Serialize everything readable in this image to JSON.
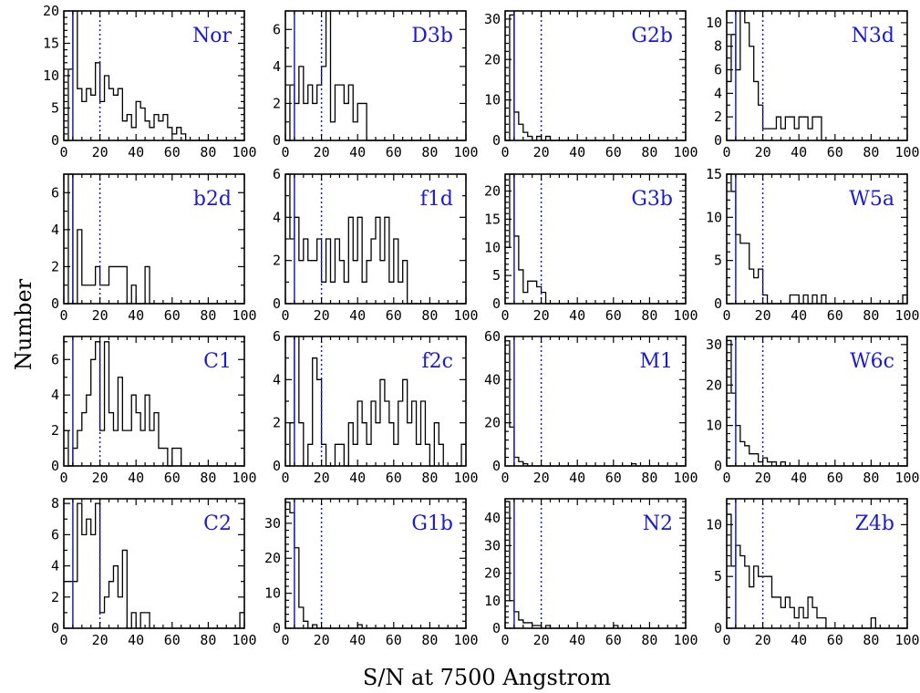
{
  "figure": {
    "ylabel": "Number",
    "xlabel": "S/N at 7500 Angstrom"
  },
  "colors": {
    "marker_lines": "#1a1ad6",
    "panel_label": "#1a1ad6",
    "histogram": "#000000"
  },
  "chart_data": [
    {
      "type": "bar",
      "panel": "Nor",
      "bin_width": 2.5,
      "xlim": [
        0,
        100
      ],
      "ylim": [
        0,
        20
      ],
      "yticks": [
        0,
        5,
        10,
        15,
        20
      ],
      "xticks": [
        0,
        20,
        40,
        60,
        80,
        100
      ],
      "solid_line_x": 5,
      "dotted_line_x": 20,
      "values": [
        0,
        11,
        20,
        8,
        6,
        8,
        7,
        12,
        6,
        10,
        8,
        7,
        8,
        3,
        4,
        2,
        6,
        5,
        3,
        2,
        4,
        3,
        4,
        2,
        1,
        2,
        1,
        0,
        0,
        0,
        0,
        0,
        0,
        0,
        0,
        0,
        0,
        0,
        0,
        0
      ]
    },
    {
      "type": "bar",
      "panel": "D3b",
      "bin_width": 2.5,
      "xlim": [
        0,
        100
      ],
      "ylim": [
        0,
        7
      ],
      "yticks": [
        0,
        2,
        4,
        6
      ],
      "xticks": [
        0,
        20,
        40,
        60,
        80,
        100
      ],
      "solid_line_x": 5,
      "dotted_line_x": 20,
      "values": [
        0,
        3,
        2,
        4,
        2,
        3,
        2,
        3,
        4,
        7,
        1,
        3,
        3,
        2,
        3,
        1,
        2,
        2,
        0,
        0,
        0,
        0,
        0,
        0,
        0,
        0,
        0,
        0,
        0,
        0,
        0,
        0,
        0,
        0,
        0,
        0,
        0,
        0,
        0,
        0
      ]
    },
    {
      "type": "bar",
      "panel": "G2b",
      "bin_width": 2.5,
      "xlim": [
        0,
        100
      ],
      "ylim": [
        0,
        32
      ],
      "yticks": [
        0,
        10,
        20,
        30
      ],
      "xticks": [
        0,
        20,
        40,
        60,
        80,
        100
      ],
      "solid_line_x": 5,
      "dotted_line_x": 20,
      "values": [
        0,
        31,
        7,
        4,
        2,
        1,
        0,
        1,
        0,
        1,
        0,
        0,
        0,
        0,
        0,
        0,
        0,
        0,
        0,
        0,
        0,
        0,
        0,
        0,
        0,
        0,
        0,
        0,
        0,
        0,
        0,
        0,
        0,
        0,
        0,
        0,
        0,
        0,
        0,
        0
      ]
    },
    {
      "type": "bar",
      "panel": "N3d",
      "bin_width": 2.5,
      "xlim": [
        0,
        100
      ],
      "ylim": [
        0,
        11
      ],
      "yticks": [
        0,
        2,
        4,
        6,
        8,
        10
      ],
      "xticks": [
        0,
        20,
        40,
        60,
        80,
        100
      ],
      "solid_line_x": 5,
      "dotted_line_x": 20,
      "values": [
        5,
        9,
        6,
        11,
        10,
        8,
        5,
        3,
        1,
        1,
        1,
        2,
        1,
        2,
        2,
        1,
        2,
        2,
        1,
        2,
        2,
        0,
        0,
        0,
        0,
        0,
        0,
        0,
        0,
        0,
        0,
        0,
        0,
        0,
        0,
        0,
        0,
        0,
        0,
        0
      ]
    },
    {
      "type": "bar",
      "panel": "b2d",
      "bin_width": 2.5,
      "xlim": [
        0,
        100
      ],
      "ylim": [
        0,
        7
      ],
      "yticks": [
        0,
        2,
        4,
        6
      ],
      "xticks": [
        0,
        20,
        40,
        60,
        80,
        100
      ],
      "solid_line_x": 5,
      "dotted_line_x": 20,
      "values": [
        0,
        7,
        0,
        4,
        1,
        1,
        1,
        2,
        1,
        1,
        2,
        2,
        2,
        2,
        0,
        1,
        0,
        0,
        2,
        0,
        0,
        0,
        0,
        0,
        0,
        0,
        0,
        0,
        0,
        0,
        0,
        0,
        0,
        0,
        0,
        0,
        0,
        0,
        0,
        0
      ]
    },
    {
      "type": "bar",
      "panel": "f1d",
      "bin_width": 2.5,
      "xlim": [
        0,
        100
      ],
      "ylim": [
        0,
        6
      ],
      "yticks": [
        0,
        2,
        4,
        6
      ],
      "xticks": [
        0,
        20,
        40,
        60,
        80,
        100
      ],
      "solid_line_x": 5,
      "dotted_line_x": 20,
      "values": [
        6,
        3,
        4,
        2,
        3,
        2,
        2,
        3,
        1,
        3,
        1,
        3,
        2,
        1,
        4,
        2,
        4,
        1,
        2,
        3,
        4,
        2,
        4,
        1,
        3,
        1,
        2,
        0,
        0,
        0,
        0,
        0,
        0,
        0,
        0,
        0,
        0,
        0,
        0,
        0
      ]
    },
    {
      "type": "bar",
      "panel": "G3b",
      "bin_width": 2.5,
      "xlim": [
        0,
        100
      ],
      "ylim": [
        0,
        23
      ],
      "yticks": [
        0,
        5,
        10,
        15,
        20
      ],
      "xticks": [
        0,
        20,
        40,
        60,
        80,
        100
      ],
      "solid_line_x": 5,
      "dotted_line_x": 20,
      "values": [
        10,
        23,
        12,
        6,
        2,
        4,
        4,
        3,
        2,
        0,
        0,
        0,
        0,
        0,
        0,
        0,
        0,
        0,
        0,
        0,
        0,
        0,
        0,
        0,
        0,
        0,
        0,
        0,
        0,
        0,
        0,
        0,
        0,
        0,
        0,
        0,
        0,
        0,
        0,
        0
      ]
    },
    {
      "type": "bar",
      "panel": "W5a",
      "bin_width": 2.5,
      "xlim": [
        0,
        100
      ],
      "ylim": [
        0,
        15
      ],
      "yticks": [
        0,
        5,
        10,
        15
      ],
      "xticks": [
        0,
        20,
        40,
        60,
        80,
        100
      ],
      "solid_line_x": 5,
      "dotted_line_x": 20,
      "values": [
        15,
        13,
        8,
        7,
        7,
        4,
        3,
        4,
        1,
        0,
        0,
        0,
        0,
        0,
        1,
        1,
        0,
        1,
        0,
        1,
        0,
        1,
        0,
        0,
        0,
        0,
        0,
        0,
        0,
        0,
        0,
        0,
        0,
        0,
        0,
        0,
        0,
        0,
        0,
        1
      ]
    },
    {
      "type": "bar",
      "panel": "C1",
      "bin_width": 2.5,
      "xlim": [
        0,
        100
      ],
      "ylim": [
        0,
        7.3
      ],
      "yticks": [
        0,
        2,
        4,
        6
      ],
      "xticks": [
        0,
        20,
        40,
        60,
        80,
        100
      ],
      "solid_line_x": 5,
      "dotted_line_x": 20,
      "values": [
        2,
        0,
        1,
        2,
        3,
        4,
        6,
        7,
        2,
        7,
        3,
        2,
        5,
        2,
        2,
        4,
        3,
        2,
        4,
        2,
        3,
        1,
        1,
        0,
        1,
        1,
        0,
        0,
        0,
        0,
        0,
        0,
        0,
        0,
        0,
        0,
        0,
        0,
        0,
        0
      ]
    },
    {
      "type": "bar",
      "panel": "f2c",
      "bin_width": 2.5,
      "xlim": [
        0,
        100
      ],
      "ylim": [
        0,
        6
      ],
      "yticks": [
        0,
        2,
        4,
        6
      ],
      "xticks": [
        0,
        20,
        40,
        60,
        80,
        100
      ],
      "solid_line_x": 5,
      "dotted_line_x": 20,
      "values": [
        0,
        2,
        6,
        2,
        0,
        1,
        5,
        4,
        1,
        0,
        0,
        1,
        1,
        0,
        2,
        1,
        3,
        2,
        1,
        3,
        2,
        4,
        3,
        2,
        1,
        3,
        4,
        2,
        3,
        1,
        3,
        1,
        0,
        2,
        1,
        0,
        0,
        0,
        0,
        1
      ]
    },
    {
      "type": "bar",
      "panel": "M1",
      "bin_width": 2.5,
      "xlim": [
        0,
        100
      ],
      "ylim": [
        0,
        60
      ],
      "yticks": [
        0,
        20,
        40,
        60
      ],
      "xticks": [
        0,
        20,
        40,
        60,
        80,
        100
      ],
      "solid_line_x": 5,
      "dotted_line_x": 20,
      "values": [
        58,
        18,
        4,
        2,
        1,
        0,
        0,
        0,
        0,
        0,
        0,
        0,
        0,
        0,
        0,
        0,
        0,
        0,
        0,
        0,
        0,
        0,
        0,
        0,
        0,
        0,
        0,
        0,
        1,
        0,
        0,
        0,
        0,
        0,
        0,
        0,
        0,
        0,
        0,
        0
      ]
    },
    {
      "type": "bar",
      "panel": "W6c",
      "bin_width": 2.5,
      "xlim": [
        0,
        100
      ],
      "ylim": [
        0,
        32
      ],
      "yticks": [
        0,
        10,
        20,
        30
      ],
      "xticks": [
        0,
        20,
        40,
        60,
        80,
        100
      ],
      "solid_line_x": 5,
      "dotted_line_x": 20,
      "values": [
        31,
        18,
        10,
        6,
        5,
        3,
        3,
        1,
        2,
        1,
        1,
        0,
        1,
        0,
        0,
        0,
        0,
        0,
        0,
        0,
        0,
        0,
        0,
        0,
        0,
        0,
        0,
        0,
        0,
        0,
        0,
        0,
        0,
        0,
        0,
        0,
        0,
        0,
        0,
        0
      ]
    },
    {
      "type": "bar",
      "panel": "C2",
      "bin_width": 2.5,
      "xlim": [
        0,
        100
      ],
      "ylim": [
        0,
        8.3
      ],
      "yticks": [
        0,
        2,
        4,
        6,
        8
      ],
      "xticks": [
        0,
        20,
        40,
        60,
        80,
        100
      ],
      "solid_line_x": 5,
      "dotted_line_x": 20,
      "values": [
        3,
        3,
        3,
        8,
        6,
        7,
        6,
        8,
        1,
        2,
        3,
        4,
        2,
        5,
        0,
        1,
        0,
        1,
        1,
        0,
        0,
        0,
        0,
        0,
        0,
        0,
        0,
        0,
        0,
        0,
        0,
        0,
        0,
        0,
        0,
        0,
        0,
        0,
        0,
        1
      ]
    },
    {
      "type": "bar",
      "panel": "G1b",
      "bin_width": 2.5,
      "xlim": [
        0,
        100
      ],
      "ylim": [
        0,
        37
      ],
      "yticks": [
        0,
        10,
        20,
        30
      ],
      "xticks": [
        0,
        20,
        40,
        60,
        80,
        100
      ],
      "solid_line_x": 5,
      "dotted_line_x": 20,
      "values": [
        36,
        33,
        23,
        6,
        2,
        0,
        1,
        0,
        0,
        0,
        0,
        0,
        0,
        0,
        0,
        0,
        1,
        0,
        0,
        0,
        0,
        0,
        0,
        0,
        0,
        0,
        0,
        0,
        0,
        0,
        0,
        0,
        0,
        0,
        0,
        0,
        0,
        0,
        0,
        0
      ]
    },
    {
      "type": "bar",
      "panel": "N2",
      "bin_width": 2.5,
      "xlim": [
        0,
        100
      ],
      "ylim": [
        0,
        47
      ],
      "yticks": [
        0,
        10,
        20,
        30,
        40
      ],
      "xticks": [
        0,
        20,
        40,
        60,
        80,
        100
      ],
      "solid_line_x": 5,
      "dotted_line_x": 20,
      "values": [
        46,
        10,
        6,
        3,
        2,
        2,
        1,
        1,
        0,
        1,
        0,
        0,
        0,
        0,
        0,
        0,
        0,
        0,
        0,
        0,
        0,
        0,
        0,
        0,
        1,
        0,
        0,
        0,
        0,
        0,
        0,
        0,
        0,
        0,
        0,
        0,
        0,
        0,
        0,
        0
      ]
    },
    {
      "type": "bar",
      "panel": "Z4b",
      "bin_width": 2.5,
      "xlim": [
        0,
        100
      ],
      "ylim": [
        0,
        12.5
      ],
      "yticks": [
        0,
        5,
        10
      ],
      "xticks": [
        0,
        20,
        40,
        60,
        80,
        100
      ],
      "solid_line_x": 5,
      "dotted_line_x": 20,
      "values": [
        11,
        6,
        8,
        7,
        6,
        4,
        6,
        5,
        5,
        5,
        3,
        3,
        2,
        3,
        2,
        1,
        2,
        1,
        3,
        2,
        1,
        1,
        0,
        0,
        0,
        0,
        0,
        0,
        0,
        0,
        0,
        0,
        1,
        0,
        0,
        0,
        0,
        0,
        0,
        0
      ]
    }
  ]
}
